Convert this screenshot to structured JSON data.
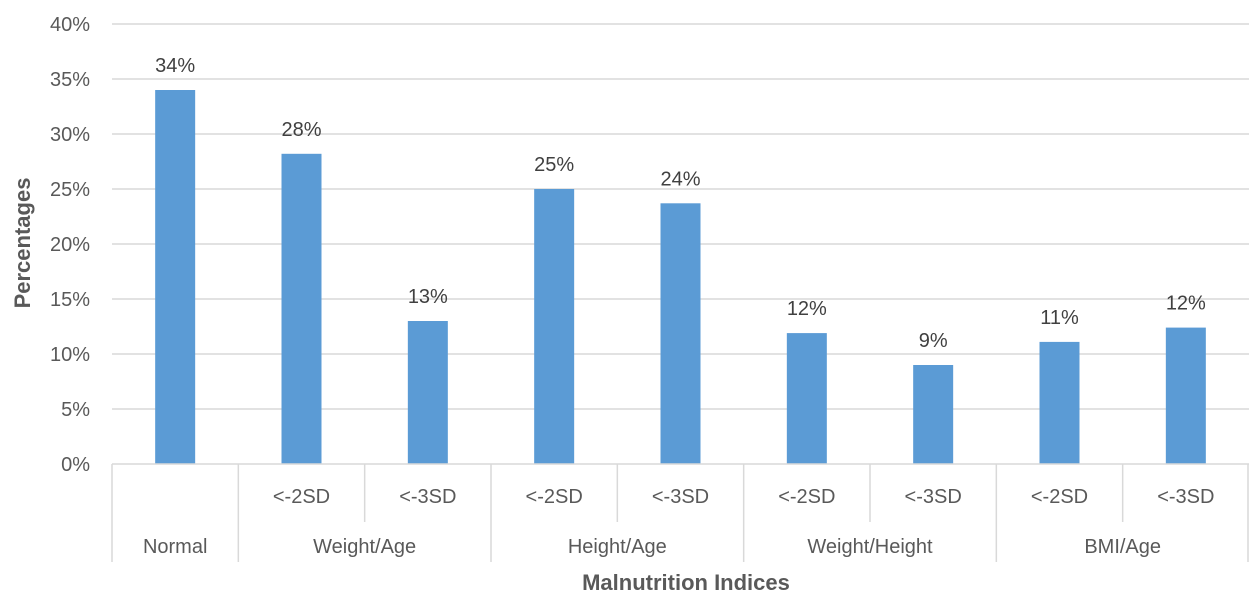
{
  "chart_data": {
    "type": "bar",
    "xlabel": "Malnutrition Indices",
    "ylabel": "Percentages",
    "ylim": [
      0,
      40
    ],
    "y_ticks": [
      "0%",
      "5%",
      "10%",
      "15%",
      "20%",
      "25%",
      "30%",
      "35%",
      "40%"
    ],
    "grid": true,
    "bar_color": "#5b9bd5",
    "groups": [
      {
        "label": "Normal",
        "categories": [
          ""
        ]
      },
      {
        "label": "Weight/Age",
        "categories": [
          "<-2SD",
          "<-3SD"
        ]
      },
      {
        "label": "Height/Age",
        "categories": [
          "<-2SD",
          "<-3SD"
        ]
      },
      {
        "label": "Weight/Height",
        "categories": [
          "<-2SD",
          "<-3SD"
        ]
      },
      {
        "label": "BMI/Age",
        "categories": [
          "<-2SD",
          "<-3SD"
        ]
      }
    ],
    "categories": [
      "Normal",
      "Weight/Age <-2SD",
      "Weight/Age <-3SD",
      "Height/Age <-2SD",
      "Height/Age <-3SD",
      "Weight/Height <-2SD",
      "Weight/Height <-3SD",
      "BMI/Age <-2SD",
      "BMI/Age <-3SD"
    ],
    "values": [
      34.0,
      28.2,
      13.0,
      25.0,
      23.7,
      11.9,
      9.0,
      11.1,
      12.4
    ],
    "data_labels": [
      "34%",
      "28%",
      "13%",
      "25%",
      "24%",
      "12%",
      "9%",
      "11%",
      "12%"
    ]
  }
}
